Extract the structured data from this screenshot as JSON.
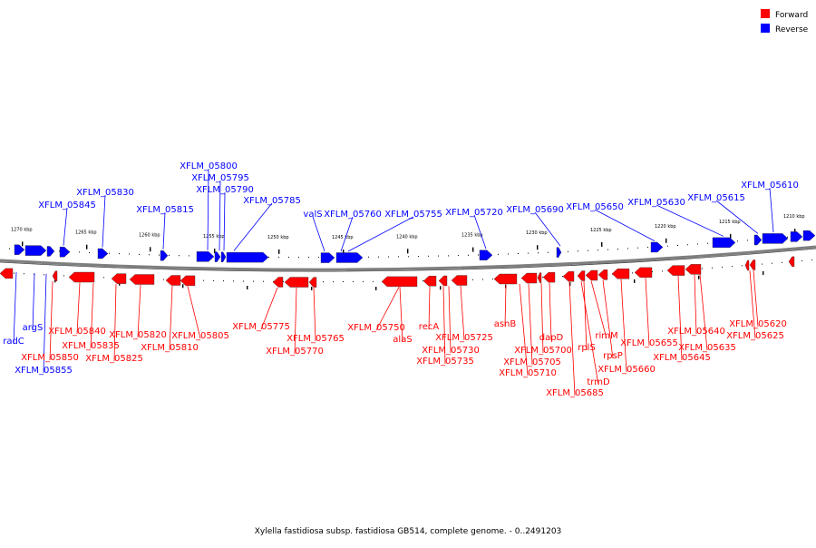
{
  "caption": "Xylella fastidiosa subsp. fastidiosa GB514, complete genome. - 0..2491203",
  "legend": [
    {
      "label": "Forward",
      "color": "#ff0000"
    },
    {
      "label": "Reverse",
      "color": "#0000ff"
    }
  ],
  "colors": {
    "forward": "#ff0000",
    "reverse": "#0000ff",
    "backbone": "#7f7f7f"
  },
  "ticks": [
    "1270 kbp",
    "1265 kbp",
    "1260 kbp",
    "1255 kbp",
    "1250 kbp",
    "1245 kbp",
    "1240 kbp",
    "1235 kbp",
    "1230 kbp",
    "1225 kbp",
    "1220 kbp",
    "1215 kbp",
    "1210 kbp"
  ],
  "reverse_labels": [
    "XFLM_05845",
    "XFLM_05830",
    "XFLM_05815",
    "XFLM_05800",
    "XFLM_05795",
    "XFLM_05790",
    "XFLM_05785",
    "valS",
    "XFLM_05760",
    "XFLM_05755",
    "XFLM_05720",
    "XFLM_05690",
    "XFLM_05650",
    "XFLM_05630",
    "XFLM_05615",
    "XFLM_05610"
  ],
  "reverse_bottom_labels": [
    "radC",
    "argS",
    "XFLM_05855"
  ],
  "forward_labels": [
    "XFLM_05850",
    "XFLM_05840",
    "XFLM_05835",
    "XFLM_05825",
    "XFLM_05820",
    "XFLM_05810",
    "XFLM_05805",
    "XFLM_05775",
    "XFLM_05770",
    "XFLM_05765",
    "XFLM_05750",
    "alaS",
    "recA",
    "XFLM_05735",
    "XFLM_05730",
    "XFLM_05725",
    "asnB",
    "XFLM_05710",
    "XFLM_05705",
    "XFLM_05700",
    "dapD",
    "XFLM_05685",
    "trmD",
    "rplS",
    "rimM",
    "rpsP",
    "XFLM_05660",
    "XFLM_05655",
    "XFLM_05645",
    "XFLM_05640",
    "XFLM_05635",
    "XFLM_05625",
    "XFLM_05620"
  ]
}
